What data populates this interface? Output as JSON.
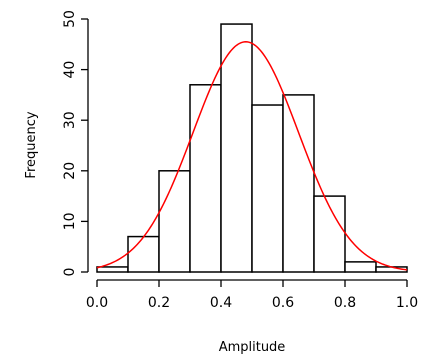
{
  "chart_data": {
    "type": "bar",
    "subtype": "histogram-with-density-curve",
    "xlabel": "Amplitude",
    "ylabel": "Frequency",
    "xlim": [
      0.0,
      1.0
    ],
    "ylim": [
      0,
      50
    ],
    "x_ticks": [
      "0.0",
      "0.2",
      "0.4",
      "0.6",
      "0.8",
      "1.0"
    ],
    "y_ticks": [
      "0",
      "10",
      "20",
      "30",
      "40",
      "50"
    ],
    "bins": [
      {
        "x0": 0.0,
        "x1": 0.1,
        "value": 1
      },
      {
        "x0": 0.1,
        "x1": 0.2,
        "value": 7
      },
      {
        "x0": 0.2,
        "x1": 0.3,
        "value": 20
      },
      {
        "x0": 0.3,
        "x1": 0.4,
        "value": 37
      },
      {
        "x0": 0.4,
        "x1": 0.5,
        "value": 49
      },
      {
        "x0": 0.5,
        "x1": 0.6,
        "value": 33
      },
      {
        "x0": 0.6,
        "x1": 0.7,
        "value": 35
      },
      {
        "x0": 0.7,
        "x1": 0.8,
        "value": 15
      },
      {
        "x0": 0.8,
        "x1": 0.9,
        "value": 2
      },
      {
        "x0": 0.9,
        "x1": 1.0,
        "value": 1
      }
    ],
    "curve": {
      "kind": "normal",
      "mean": 0.48,
      "sd": 0.17,
      "peak": 45.5,
      "color": "#ff0000"
    },
    "grid": false,
    "colors": {
      "bars_fill": "#ffffff",
      "bars_stroke": "#000000",
      "curve": "#ff0000"
    }
  }
}
